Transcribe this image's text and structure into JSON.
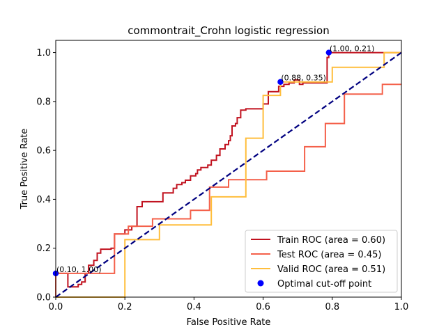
{
  "chart_data": {
    "type": "line",
    "title": "commontrait_Crohn logistic regression",
    "xlabel": "False Positive Rate",
    "ylabel": "True Positive Rate",
    "xlim": [
      0.0,
      1.0
    ],
    "ylim": [
      0.0,
      1.05
    ],
    "xticks": [
      "0.0",
      "0.2",
      "0.4",
      "0.6",
      "0.8",
      "1.0"
    ],
    "yticks": [
      "0.0",
      "0.2",
      "0.4",
      "0.6",
      "0.8",
      "1.0"
    ],
    "grid": false,
    "legend_position": "lower-right",
    "diagonal": {
      "x": [
        0,
        1
      ],
      "y": [
        0,
        1
      ],
      "color": "#000080",
      "style": "dashed"
    },
    "series": [
      {
        "name": "Train ROC (area = 0.60)",
        "color": "#c1121f",
        "x": [
          0.0,
          0.0,
          0.035,
          0.035,
          0.065,
          0.065,
          0.075,
          0.075,
          0.085,
          0.085,
          0.095,
          0.095,
          0.11,
          0.11,
          0.12,
          0.12,
          0.13,
          0.13,
          0.16,
          0.16,
          0.17,
          0.17,
          0.2,
          0.2,
          0.22,
          0.22,
          0.235,
          0.235,
          0.25,
          0.25,
          0.31,
          0.31,
          0.34,
          0.34,
          0.35,
          0.35,
          0.365,
          0.365,
          0.375,
          0.375,
          0.39,
          0.39,
          0.405,
          0.405,
          0.41,
          0.41,
          0.42,
          0.42,
          0.44,
          0.44,
          0.45,
          0.45,
          0.465,
          0.465,
          0.475,
          0.475,
          0.49,
          0.49,
          0.5,
          0.5,
          0.505,
          0.505,
          0.51,
          0.51,
          0.52,
          0.52,
          0.525,
          0.525,
          0.535,
          0.535,
          0.55,
          0.55,
          0.6,
          0.6,
          0.615,
          0.615,
          0.645,
          0.645,
          0.66,
          0.66,
          0.675,
          0.675,
          0.69,
          0.69,
          0.705,
          0.705,
          0.715,
          0.715,
          0.785,
          0.785,
          0.79,
          0.79,
          1.0
        ],
        "y": [
          0.0,
          0.097,
          0.097,
          0.042,
          0.042,
          0.052,
          0.052,
          0.062,
          0.062,
          0.097,
          0.097,
          0.13,
          0.13,
          0.15,
          0.15,
          0.18,
          0.18,
          0.196,
          0.196,
          0.2,
          0.2,
          0.258,
          0.258,
          0.275,
          0.275,
          0.29,
          0.29,
          0.37,
          0.37,
          0.39,
          0.39,
          0.426,
          0.426,
          0.445,
          0.445,
          0.46,
          0.46,
          0.468,
          0.468,
          0.478,
          0.478,
          0.496,
          0.496,
          0.505,
          0.505,
          0.52,
          0.52,
          0.53,
          0.53,
          0.54,
          0.54,
          0.56,
          0.56,
          0.58,
          0.58,
          0.606,
          0.606,
          0.624,
          0.624,
          0.64,
          0.64,
          0.66,
          0.66,
          0.7,
          0.7,
          0.71,
          0.71,
          0.734,
          0.734,
          0.765,
          0.765,
          0.77,
          0.77,
          0.79,
          0.79,
          0.84,
          0.84,
          0.862,
          0.862,
          0.87,
          0.87,
          0.876,
          0.876,
          0.888,
          0.888,
          0.87,
          0.87,
          0.876,
          0.876,
          0.98,
          0.98,
          1.0,
          1.0
        ]
      },
      {
        "name": "Test ROC (area = 0.45)",
        "color": "#f4604a",
        "x": [
          0.0,
          0.0,
          0.17,
          0.17,
          0.21,
          0.21,
          0.28,
          0.28,
          0.39,
          0.39,
          0.445,
          0.445,
          0.5,
          0.5,
          0.61,
          0.61,
          0.72,
          0.72,
          0.78,
          0.78,
          0.835,
          0.835,
          0.945,
          0.945,
          1.0
        ],
        "y": [
          0.0,
          0.097,
          0.097,
          0.258,
          0.258,
          0.29,
          0.29,
          0.32,
          0.32,
          0.355,
          0.355,
          0.45,
          0.45,
          0.48,
          0.48,
          0.515,
          0.515,
          0.615,
          0.615,
          0.71,
          0.71,
          0.83,
          0.83,
          0.87,
          0.87
        ]
      },
      {
        "name": "Valid ROC (area = 0.51)",
        "color": "#ffbe3c",
        "x": [
          0.0,
          0.2,
          0.2,
          0.3,
          0.3,
          0.45,
          0.45,
          0.55,
          0.55,
          0.6,
          0.6,
          0.65,
          0.65,
          0.8,
          0.8,
          0.95,
          0.95,
          1.0
        ],
        "y": [
          0.0,
          0.0,
          0.235,
          0.235,
          0.295,
          0.295,
          0.41,
          0.41,
          0.65,
          0.65,
          0.825,
          0.825,
          0.88,
          0.88,
          0.94,
          0.94,
          1.0,
          1.0
        ]
      }
    ],
    "optimal_points": {
      "name": "Optimal cut-off point",
      "color": "#0000ff",
      "points": [
        {
          "x": 0.0,
          "y": 0.097,
          "label": "(0.10, 1.00)"
        },
        {
          "x": 0.65,
          "y": 0.88,
          "label": "(0.88, 0.35)"
        },
        {
          "x": 0.79,
          "y": 1.0,
          "label": "(1.00, 0.21)"
        }
      ]
    }
  }
}
